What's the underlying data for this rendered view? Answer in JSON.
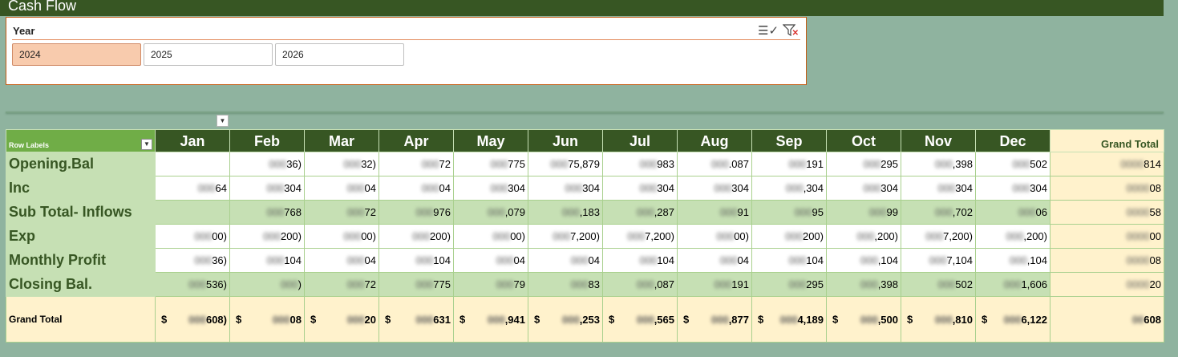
{
  "title": "Cash Flow",
  "slicer": {
    "title": "Year",
    "icons": [
      "multi-select-icon",
      "clear-filter-icon"
    ],
    "options": [
      {
        "label": "2024",
        "selected": true
      },
      {
        "label": "2025",
        "selected": false
      },
      {
        "label": "2026",
        "selected": false
      }
    ]
  },
  "pivot": {
    "row_labels_header": "Row Labels",
    "months": [
      "Jan",
      "Feb",
      "Mar",
      "Apr",
      "May",
      "Jun",
      "Jul",
      "Aug",
      "Sep",
      "Oct",
      "Nov",
      "Dec"
    ],
    "grand_total_header": "Grand Total",
    "rows": [
      {
        "label": "Opening.Bal",
        "style": "normal",
        "values": [
          "",
          "36)",
          "32)",
          "72",
          "775",
          "75,879",
          "983",
          ".087",
          "191",
          "295",
          ",398",
          "502"
        ],
        "total": "814"
      },
      {
        "label": "Inc",
        "style": "normal",
        "values": [
          "64",
          "304",
          "04",
          "04",
          "304",
          "304",
          "304",
          "304",
          ",304",
          "304",
          "304",
          "304"
        ],
        "total": "08"
      },
      {
        "label": "Sub Total- Inflows",
        "style": "subtotal",
        "values": [
          "",
          "768",
          "72",
          "976",
          ",079",
          ",183",
          ",287",
          "91",
          "95",
          "99",
          ",702",
          "06"
        ],
        "total": "58"
      },
      {
        "label": "Exp",
        "style": "normal",
        "values": [
          "00)",
          "200)",
          "00)",
          "200)",
          "00)",
          "7,200)",
          "7,200)",
          "00)",
          "200)",
          ",200)",
          "7,200)",
          ",200)"
        ],
        "total": "00"
      },
      {
        "label": "Monthly Profit",
        "style": "normal",
        "values": [
          "36)",
          "104",
          "04",
          "104",
          "04",
          "04",
          "104",
          "04",
          "104",
          ",104",
          "7,104",
          ",104"
        ],
        "total": "08"
      },
      {
        "label": "Closing Bal.",
        "style": "closing",
        "values": [
          "536)",
          ")",
          "72",
          "775",
          "79",
          "83",
          ",087",
          "191",
          "295",
          ",398",
          "502",
          "1,606"
        ],
        "total": "20"
      }
    ],
    "grand_total": {
      "label": "Grand Total",
      "currency": "$",
      "values": [
        "608)",
        "08",
        "20",
        "631",
        ",941",
        ",253",
        ",565",
        ",877",
        "4,189",
        ",500",
        ",810",
        "6,122"
      ],
      "total": "608"
    }
  }
}
